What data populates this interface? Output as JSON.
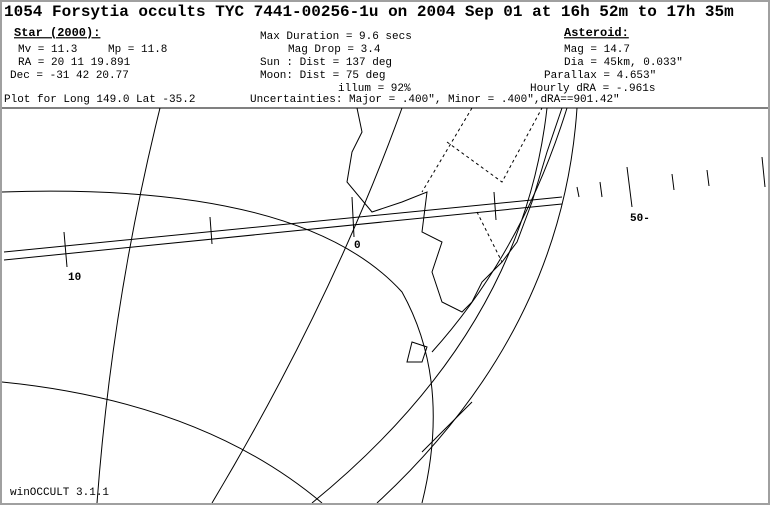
{
  "header": {
    "title": "1054 Forsytia occults TYC 7441-00256-1u on 2004 Sep 01 at 16h 52m to 17h 35m"
  },
  "star": {
    "heading": "Star (2000):",
    "mv": "Mv = 11.3",
    "mp": "Mp = 11.8",
    "ra": "RA =  20 11 19.891",
    "dec": "Dec = -31 42 20.77"
  },
  "event": {
    "duration": "Max Duration = 9.6 secs",
    "drop": "Mag Drop =  3.4",
    "sun": "Sun :   Dist = 137 deg",
    "moon": "Moon:   Dist = 75 deg",
    "illum": "illum = 92%"
  },
  "asteroid": {
    "heading": "Asteroid:",
    "mag": "Mag = 14.7",
    "dia": "Dia = 45km, 0.033\"",
    "parallax": "Parallax = 4.653\"",
    "hourly": "Hourly dRA = -.961s"
  },
  "plot": "Plot for Long 149.0  Lat -35.2",
  "uncertainties": "Uncertainties: Major = .400\", Minor = .400\",dRA==901.42\"",
  "map": {
    "labels": [
      "10",
      "0",
      "50-"
    ]
  },
  "footer": "winOCCULT 3.1.1"
}
